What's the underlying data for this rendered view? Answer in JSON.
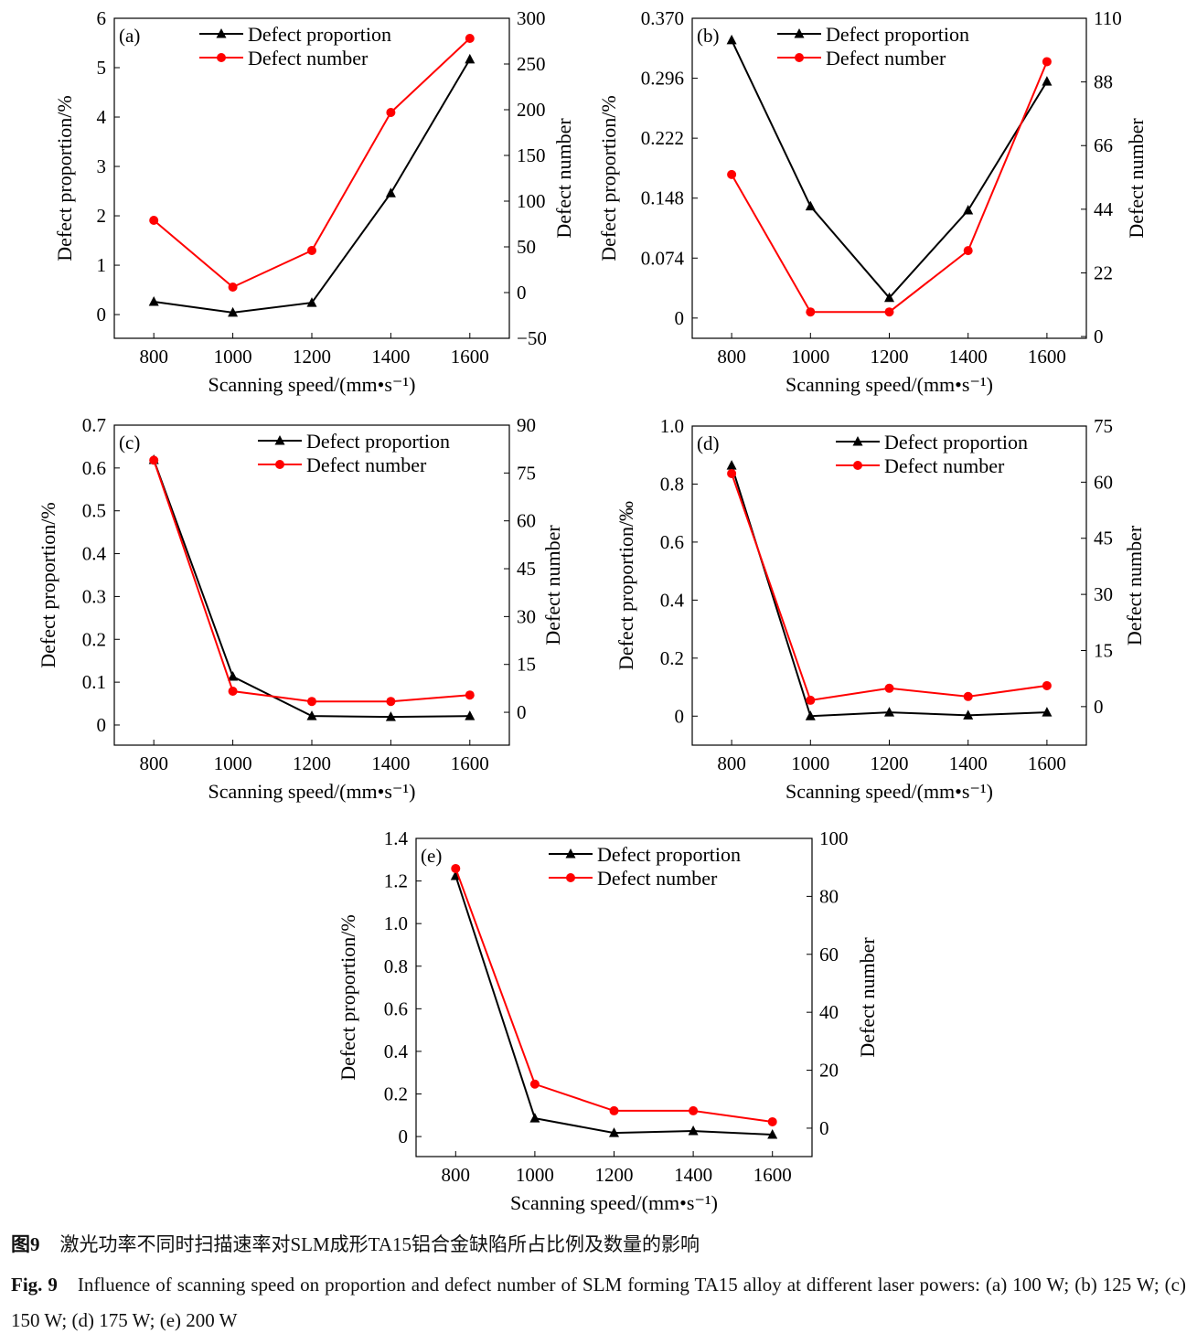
{
  "chart_data": [
    {
      "type": "line",
      "panel": "(a)",
      "xlabel": "Scanning speed/(mm•s⁻¹)",
      "ylabel": "Defect proportion/%",
      "y2label": "Defect number",
      "x": [
        800,
        1000,
        1200,
        1400,
        1600
      ],
      "xticks": [
        "800",
        "1000",
        "1200",
        "1400",
        "1600"
      ],
      "xlim": [
        700,
        1700
      ],
      "ylim": [
        -0.48,
        6
      ],
      "yticks": [
        0,
        1,
        2,
        3,
        4,
        5,
        6
      ],
      "yticklabels": [
        "0",
        "1",
        "2",
        "3",
        "4",
        "5",
        "6"
      ],
      "y2lim": [
        -50,
        300
      ],
      "y2ticks": [
        -50,
        0,
        50,
        100,
        150,
        200,
        250,
        300
      ],
      "y2ticklabels": [
        "−50",
        "0",
        "50",
        "100",
        "150",
        "200",
        "250",
        "300"
      ],
      "series": [
        {
          "name": "Defect proportion",
          "axis": "left",
          "color": "#000000",
          "marker": "triangle",
          "values": [
            0.26,
            0.04,
            0.24,
            2.46,
            5.17
          ]
        },
        {
          "name": "Defect number",
          "axis": "right",
          "color": "#ff0000",
          "marker": "circle",
          "values": [
            79,
            6,
            46,
            197,
            278
          ]
        }
      ],
      "legend": "top-right"
    },
    {
      "type": "line",
      "panel": "(b)",
      "xlabel": "Scanning speed/(mm•s⁻¹)",
      "ylabel": "Defect proportion/%",
      "y2label": "Defect number",
      "x": [
        800,
        1000,
        1200,
        1400,
        1600
      ],
      "xticks": [
        "800",
        "1000",
        "1200",
        "1400",
        "1600"
      ],
      "xlim": [
        700,
        1700
      ],
      "ylim": [
        -0.025,
        0.37
      ],
      "yticks": [
        0,
        0.074,
        0.148,
        0.222,
        0.296,
        0.37
      ],
      "yticklabels": [
        "0",
        "0.074",
        "0.148",
        "0.222",
        "0.296",
        "0.370"
      ],
      "y2lim": [
        -0.6,
        110
      ],
      "y2ticks": [
        0,
        22,
        44,
        66,
        88,
        110
      ],
      "y2ticklabels": [
        "0",
        "22",
        "44",
        "66",
        "88",
        "110"
      ],
      "series": [
        {
          "name": "Defect proportion",
          "axis": "left",
          "color": "#000000",
          "marker": "triangle",
          "values": [
            0.343,
            0.138,
            0.025,
            0.133,
            0.292
          ]
        },
        {
          "name": "Defect number",
          "axis": "right",
          "color": "#ff0000",
          "marker": "circle",
          "values": [
            56,
            8.5,
            8.5,
            29.7,
            95
          ]
        }
      ],
      "legend": "top-right"
    },
    {
      "type": "line",
      "panel": "(c)",
      "xlabel": "Scanning speed/(mm•s⁻¹)",
      "ylabel": "Defect proportion/%",
      "y2label": "Defect number",
      "x": [
        800,
        1000,
        1200,
        1400,
        1600
      ],
      "xticks": [
        "800",
        "1000",
        "1200",
        "1400",
        "1600"
      ],
      "xlim": [
        700,
        1700
      ],
      "ylim": [
        -0.047,
        0.7
      ],
      "yticks": [
        0,
        0.1,
        0.2,
        0.3,
        0.4,
        0.5,
        0.6,
        0.7
      ],
      "yticklabels": [
        "0",
        "0.1",
        "0.2",
        "0.3",
        "0.4",
        "0.5",
        "0.6",
        "0.7"
      ],
      "y2lim": [
        -10.3,
        90
      ],
      "y2ticks": [
        0,
        15,
        30,
        45,
        60,
        75,
        90
      ],
      "y2ticklabels": [
        "0",
        "15",
        "30",
        "45",
        "60",
        "75",
        "90"
      ],
      "series": [
        {
          "name": "Defect proportion",
          "axis": "left",
          "color": "#000000",
          "marker": "triangle",
          "values": [
            0.619,
            0.113,
            0.021,
            0.019,
            0.021
          ]
        },
        {
          "name": "Defect number",
          "axis": "right",
          "color": "#ff0000",
          "marker": "circle",
          "values": [
            79,
            6.6,
            3.4,
            3.4,
            5.4
          ]
        }
      ],
      "legend": "top-right"
    },
    {
      "type": "line",
      "panel": "(d)",
      "xlabel": "Scanning speed/(mm•s⁻¹)",
      "ylabel": "Defect proportion/‰",
      "y2label": "Defect number",
      "x": [
        800,
        1000,
        1200,
        1400,
        1600
      ],
      "xticks": [
        "800",
        "1000",
        "1200",
        "1400",
        "1600"
      ],
      "xlim": [
        700,
        1700
      ],
      "ylim": [
        -0.1,
        1.0
      ],
      "yticks": [
        0,
        0.2,
        0.4,
        0.6,
        0.8,
        1.0
      ],
      "yticklabels": [
        "0",
        "0.2",
        "0.4",
        "0.6",
        "0.8",
        "1.0"
      ],
      "y2lim": [
        -10.3,
        75
      ],
      "y2ticks": [
        0,
        15,
        30,
        45,
        60,
        75
      ],
      "y2ticklabels": [
        "0",
        "15",
        "30",
        "45",
        "60",
        "75"
      ],
      "series": [
        {
          "name": "Defect proportion",
          "axis": "left",
          "color": "#000000",
          "marker": "triangle",
          "values": [
            0.864,
            0.0,
            0.013,
            0.003,
            0.013
          ]
        },
        {
          "name": "Defect number",
          "axis": "right",
          "color": "#ff0000",
          "marker": "circle",
          "values": [
            62.3,
            1.7,
            4.9,
            2.7,
            5.6
          ]
        }
      ],
      "legend": "top-right"
    },
    {
      "type": "line",
      "panel": "(e)",
      "xlabel": "Scanning speed/(mm•s⁻¹)",
      "ylabel": "Defect proportion/%",
      "y2label": "Defect number",
      "x": [
        800,
        1000,
        1200,
        1400,
        1600
      ],
      "xticks": [
        "800",
        "1000",
        "1200",
        "1400",
        "1600"
      ],
      "xlim": [
        700,
        1700
      ],
      "ylim": [
        -0.094,
        1.4
      ],
      "yticks": [
        0,
        0.2,
        0.4,
        0.6,
        0.8,
        1.0,
        1.2,
        1.4
      ],
      "yticklabels": [
        "0",
        "0.2",
        "0.4",
        "0.6",
        "0.8",
        "1.0",
        "1.2",
        "1.4"
      ],
      "y2lim": [
        -9.8,
        100
      ],
      "y2ticks": [
        0,
        20,
        40,
        60,
        80,
        100
      ],
      "y2ticklabels": [
        "0",
        "20",
        "40",
        "60",
        "80",
        "100"
      ],
      "series": [
        {
          "name": "Defect proportion",
          "axis": "left",
          "color": "#000000",
          "marker": "triangle",
          "values": [
            1.224,
            0.086,
            0.017,
            0.026,
            0.009
          ]
        },
        {
          "name": "Defect number",
          "axis": "right",
          "color": "#ff0000",
          "marker": "circle",
          "values": [
            89.6,
            15.2,
            6.0,
            6.0,
            2.2
          ]
        }
      ],
      "legend": "top-right"
    }
  ],
  "caption": {
    "cn_label": "图9",
    "cn_text": "激光功率不同时扫描速率对SLM成形TA15铝合金缺陷所占比例及数量的影响",
    "en_label": "Fig. 9",
    "en_text": "Influence of scanning speed on proportion and defect number of SLM forming TA15 alloy at different laser powers: (a) 100 W; (b) 125 W; (c) 150 W; (d) 175 W; (e) 200 W"
  }
}
